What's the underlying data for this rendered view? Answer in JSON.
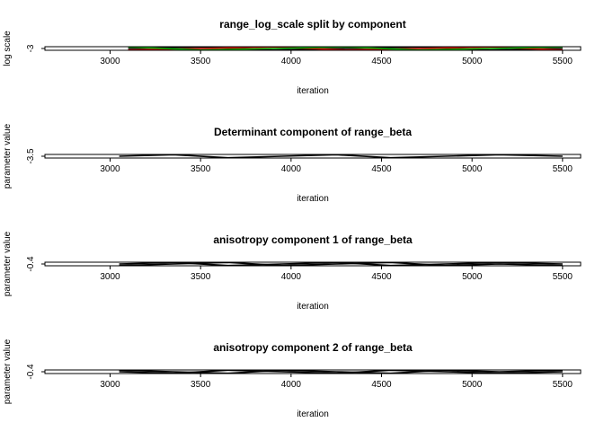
{
  "chart_data": [
    {
      "type": "line",
      "title": "range_log_scale split by component",
      "xlabel": "iteration",
      "ylabel": "log scale",
      "xlim": [
        2640,
        5600
      ],
      "xticks": [
        3000,
        3500,
        4000,
        4500,
        5000,
        5500
      ],
      "yticks": [
        -3
      ],
      "ytick_labels": [
        "-3"
      ],
      "colors": [
        "#000000",
        "#cc0000",
        "#00aa00"
      ],
      "series": [
        {
          "x": [
            3100,
            3500,
            3900,
            4300,
            4700,
            5100,
            5500
          ],
          "y": [
            -3.0,
            -2.99,
            -3.01,
            -3.0,
            -2.99,
            -3.01,
            -3.0
          ]
        },
        {
          "x": [
            3100,
            3500,
            3900,
            4300,
            4700,
            5100,
            5500
          ],
          "y": [
            -3.01,
            -3.0,
            -2.99,
            -3.01,
            -3.0,
            -2.99,
            -3.01
          ]
        },
        {
          "x": [
            3100,
            3500,
            3900,
            4300,
            4700,
            5100,
            5500
          ],
          "y": [
            -2.99,
            -3.01,
            -3.0,
            -2.99,
            -3.01,
            -3.0,
            -2.99
          ]
        }
      ]
    },
    {
      "type": "line",
      "title": "Determinant component of range_beta",
      "xlabel": "iteration",
      "ylabel": "parameter value",
      "xlim": [
        2640,
        5600
      ],
      "xticks": [
        3000,
        3500,
        4000,
        4500,
        5000,
        5500
      ],
      "yticks": [
        -3.5
      ],
      "ytick_labels": [
        "-3.5"
      ],
      "colors": [
        "#000000"
      ],
      "series": [
        {
          "x": [
            3050,
            3350,
            3650,
            3950,
            4250,
            4550,
            4850,
            5150,
            5500
          ],
          "y": [
            -3.5,
            -3.49,
            -3.51,
            -3.5,
            -3.49,
            -3.51,
            -3.5,
            -3.49,
            -3.5
          ]
        }
      ]
    },
    {
      "type": "line",
      "title": "anisotropy component 1 of range_beta",
      "xlabel": "iteration",
      "ylabel": "parameter value",
      "xlim": [
        2640,
        5600
      ],
      "xticks": [
        3000,
        3500,
        4000,
        4500,
        5000,
        5500
      ],
      "yticks": [
        -0.4
      ],
      "ytick_labels": [
        "-0.4"
      ],
      "colors": [
        "#000000",
        "#000000"
      ],
      "series": [
        {
          "x": [
            3050,
            3350,
            3650,
            3950,
            4250,
            4550,
            4850,
            5150,
            5500
          ],
          "y": [
            -0.4,
            -0.399,
            -0.401,
            -0.4,
            -0.399,
            -0.401,
            -0.4,
            -0.399,
            -0.4
          ]
        },
        {
          "x": [
            3050,
            3350,
            3650,
            3950,
            4250,
            4550,
            4850,
            5150,
            5500
          ],
          "y": [
            -0.401,
            -0.4,
            -0.399,
            -0.401,
            -0.4,
            -0.399,
            -0.401,
            -0.4,
            -0.401
          ]
        }
      ]
    },
    {
      "type": "line",
      "title": "anisotropy component 2 of range_beta",
      "xlabel": "iteration",
      "ylabel": "parameter value",
      "xlim": [
        2640,
        5600
      ],
      "xticks": [
        3000,
        3500,
        4000,
        4500,
        5000,
        5500
      ],
      "yticks": [
        -0.4
      ],
      "ytick_labels": [
        "-0.4"
      ],
      "colors": [
        "#000000",
        "#000000"
      ],
      "series": [
        {
          "x": [
            3050,
            3350,
            3650,
            3950,
            4250,
            4550,
            4850,
            5150,
            5500
          ],
          "y": [
            -0.4,
            -0.401,
            -0.399,
            -0.4,
            -0.401,
            -0.399,
            -0.4,
            -0.401,
            -0.4
          ]
        },
        {
          "x": [
            3050,
            3350,
            3650,
            3950,
            4250,
            4550,
            4850,
            5150,
            5500
          ],
          "y": [
            -0.399,
            -0.4,
            -0.401,
            -0.399,
            -0.4,
            -0.401,
            -0.399,
            -0.4,
            -0.399
          ]
        }
      ]
    }
  ]
}
